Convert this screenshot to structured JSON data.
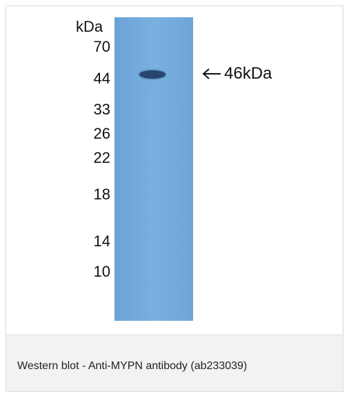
{
  "figure": {
    "kda_header": "kDa",
    "markers": [
      "70",
      "44",
      "33",
      "26",
      "22",
      "18",
      "14",
      "10"
    ],
    "annotation": "46kDa",
    "arrow_icon": "left-arrow-icon",
    "lane_color": "#6ea6d9",
    "band_color": "#27456e"
  },
  "caption": {
    "text": "Western blot - Anti-MYPN antibody (ab233039)"
  }
}
